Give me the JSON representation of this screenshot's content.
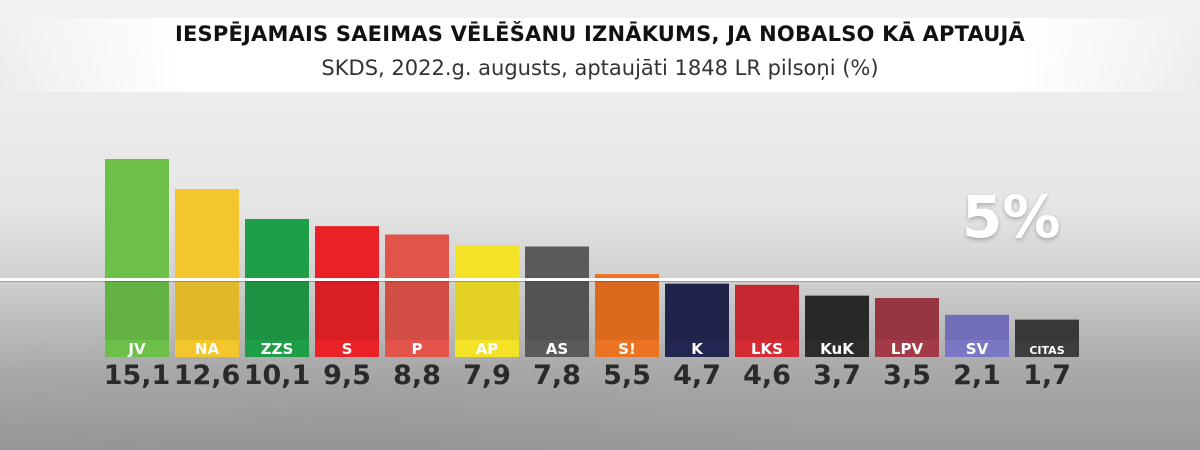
{
  "chart_data": {
    "type": "bar",
    "title": "IESPĒJAMAIS SAEIMAS VĒLĒŠANU IZNĀKUMS, JA NOBALSO KĀ APTAUJĀ",
    "subtitle": "SKDS, 2022.g. augusts, aptaujāti 1848 LR pilsoņi (%)",
    "threshold_label": "5%",
    "threshold": 5,
    "categories": [
      "JV",
      "NA",
      "ZZS",
      "S",
      "P",
      "AP",
      "AS",
      "S!",
      "K",
      "LKS",
      "KuK",
      "LPV",
      "SV",
      "CITAS"
    ],
    "values": [
      15.1,
      12.6,
      10.1,
      9.5,
      8.8,
      7.9,
      7.8,
      5.5,
      4.7,
      4.6,
      3.7,
      3.5,
      2.1,
      1.7
    ],
    "value_labels": [
      "15,1",
      "12,6",
      "10,1",
      "9,5",
      "8,8",
      "7,9",
      "7,8",
      "5,5",
      "4,7",
      "4,6",
      "3,7",
      "3,5",
      "2,1",
      "1,7"
    ],
    "colors": [
      "#6cc04a",
      "#f3c62c",
      "#1f9e48",
      "#ea2228",
      "#e2534a",
      "#f4e227",
      "#5a5a5a",
      "#ec7321",
      "#232650",
      "#d52b34",
      "#2c2c2c",
      "#a33a47",
      "#7a77c5",
      "#3d3d3d"
    ],
    "ylim": [
      0,
      16
    ],
    "grid": false,
    "legend": "none"
  }
}
